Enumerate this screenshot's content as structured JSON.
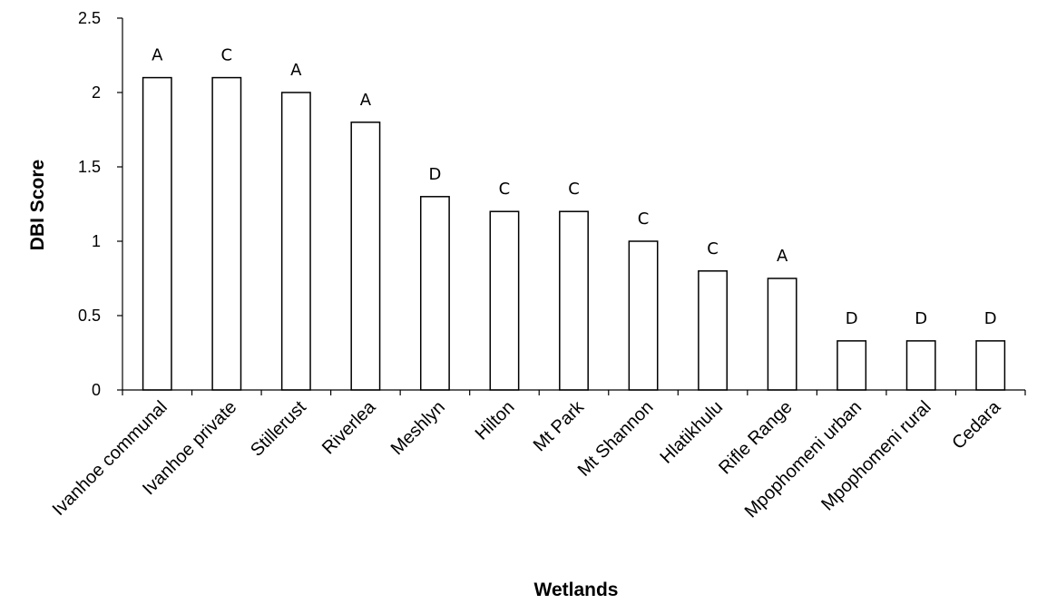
{
  "chart_data": {
    "type": "bar",
    "title": "",
    "xlabel": "Wetlands",
    "ylabel": "DBI Score",
    "ylim": [
      0,
      2.5
    ],
    "yticks": [
      "0",
      "0.5",
      "1",
      "1.5",
      "2",
      "2.5"
    ],
    "grid": false,
    "legend": "none",
    "bar_fill": "#ffffff",
    "bar_stroke": "#000000",
    "categories": [
      "Ivanhoe communal",
      "Ivanhoe private",
      "Stillerust",
      "Riverlea",
      "Meshlyn",
      "Hilton",
      "Mt Park",
      "Mt Shannon",
      "Hlatikhulu",
      "Rifle Range",
      "Mpophomeni urban",
      "Mpophomeni rural",
      "Cedara"
    ],
    "values": [
      2.1,
      2.1,
      2.0,
      1.8,
      1.3,
      1.2,
      1.2,
      1.0,
      0.8,
      0.75,
      0.33,
      0.33,
      0.33
    ],
    "data_labels": [
      "A",
      "C",
      "A",
      "A",
      "D",
      "C",
      "C",
      "C",
      "C",
      "A",
      "D",
      "D",
      "D"
    ]
  }
}
